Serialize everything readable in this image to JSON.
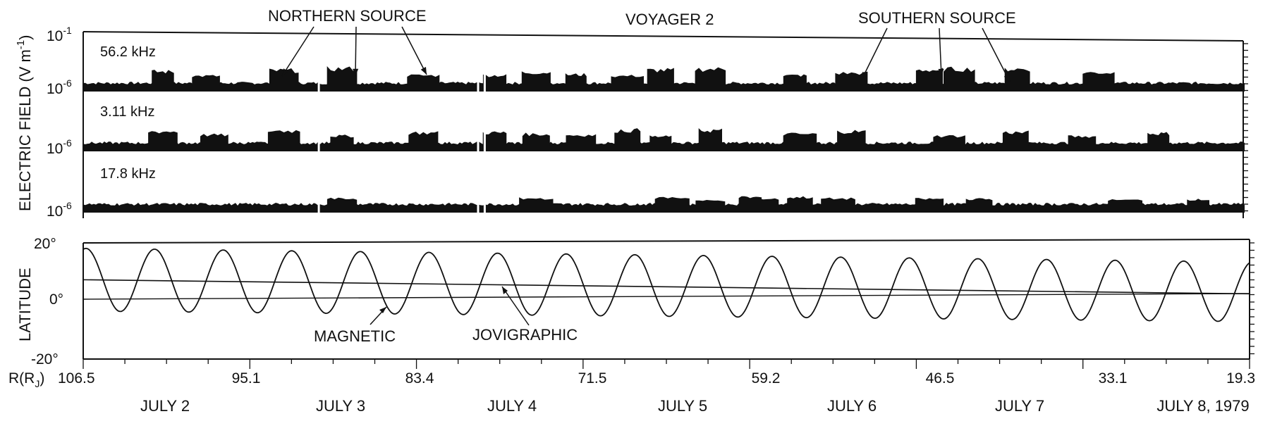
{
  "chart_data": [
    {
      "type": "area",
      "title": "VOYAGER 2",
      "ylabel": "ELECTRIC FIELD (V m⁻¹)",
      "ylabel_main": "ELECTRIC FIELD (V m",
      "ylabel_exp": "-1",
      "ylabel_close": ")",
      "y_scale": "log",
      "annotations": [
        {
          "text": "NORTHERN SOURCE"
        },
        {
          "text": "SOUTHERN SOURCE"
        }
      ],
      "panels": [
        {
          "name": "56.2 kHz",
          "y_ticks": [
            {
              "base": "10",
              "exp": "-1"
            },
            {
              "base": "10",
              "exp": "-6"
            }
          ],
          "burst_days": [
            0.48,
            0.74,
            1.21,
            1.56,
            2.05,
            2.48,
            2.73,
            2.97,
            3.28,
            3.48,
            3.78,
            4.29,
            4.63,
            5.1,
            5.28,
            5.63,
            6.12
          ]
        },
        {
          "name": "3.11 kHz",
          "y_ticks": [
            {
              "base": "10",
              "exp": "-6"
            }
          ],
          "burst_days": [
            0.48,
            0.79,
            1.21,
            1.56,
            2.05,
            2.48,
            2.73,
            3.0,
            3.28,
            3.48,
            3.78,
            4.32,
            4.63,
            5.22,
            5.62,
            6.02,
            6.48
          ]
        },
        {
          "name": "17.8 kHz",
          "y_ticks": [
            {
              "base": "10",
              "exp": "-6"
            }
          ],
          "burst_days": [
            1.56,
            2.73,
            3.55,
            3.78,
            4.02,
            4.1,
            4.32,
            4.55,
            5.1,
            5.4,
            6.28,
            6.72
          ]
        }
      ]
    },
    {
      "type": "line",
      "ylabel": "LATITUDE",
      "y_ticks": [
        "20°",
        "0°",
        "-20°"
      ],
      "ylim": [
        -20,
        20
      ],
      "series": [
        {
          "name": "MAGNETIC",
          "kind": "sinusoid",
          "rotation_period_hours": 9.925,
          "cycles_shown": 17
        },
        {
          "name": "JOVIGRAPHIC",
          "start": 6.5,
          "end": 1.8
        }
      ]
    }
  ],
  "x_axis": {
    "radius_label_prefix": "R(R",
    "radius_label_sub": "J",
    "radius_label_suffix": ")",
    "radius_ticks": [
      "106.5",
      "95.1",
      "83.4",
      "71.5",
      "59.2",
      "46.5",
      "33.1",
      "19.3"
    ],
    "dates": [
      "JULY 2",
      "JULY 3",
      "JULY 4",
      "JULY 5",
      "JULY 6",
      "JULY 7",
      "JULY 8, 1979"
    ],
    "range_days": [
      0,
      7
    ]
  }
}
